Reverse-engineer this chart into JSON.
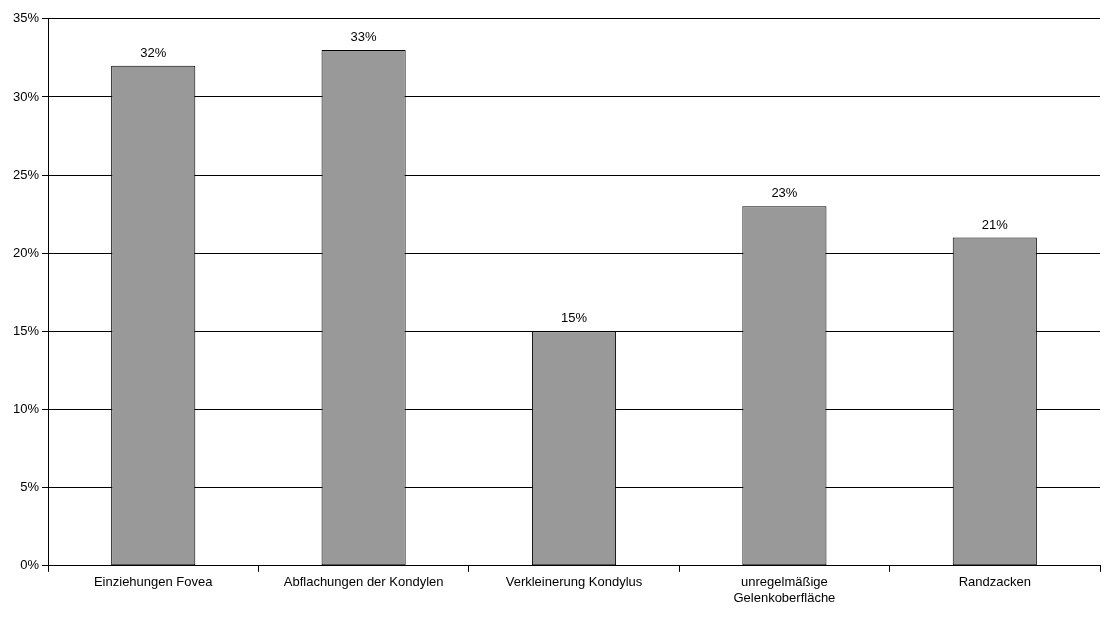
{
  "chart_data": {
    "type": "bar",
    "categories": [
      "Einziehungen Fovea",
      "Abflachungen der Kondylen",
      "Verkleinerung Kondylus",
      "unregelmäßige Gelenkoberfläche",
      "Randzacken"
    ],
    "values": [
      32,
      33,
      15,
      23,
      21
    ],
    "value_labels": [
      "32%",
      "33%",
      "15%",
      "23%",
      "21%"
    ],
    "color": "#999999",
    "ylim": [
      0,
      35
    ],
    "yticks": [
      {
        "value": 0,
        "label": "0%"
      },
      {
        "value": 5,
        "label": "5%"
      },
      {
        "value": 10,
        "label": "10%"
      },
      {
        "value": 15,
        "label": "15%"
      },
      {
        "value": 20,
        "label": "20%"
      },
      {
        "value": 25,
        "label": "25%"
      },
      {
        "value": 30,
        "label": "30%"
      },
      {
        "value": 35,
        "label": "35%"
      }
    ],
    "grid": "y",
    "legend": false
  }
}
